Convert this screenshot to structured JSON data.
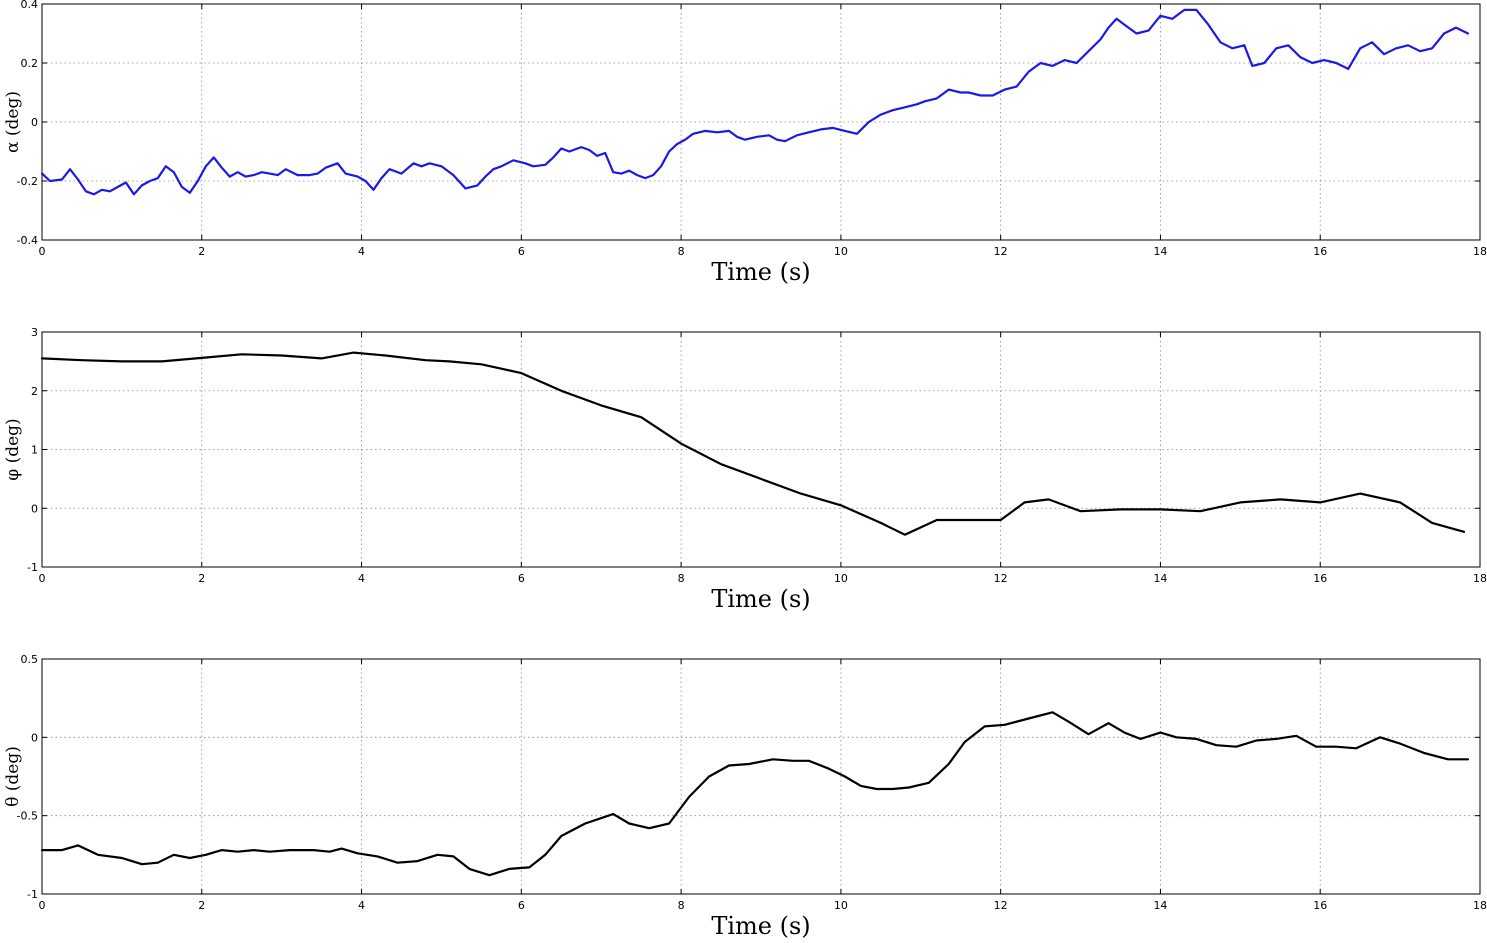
{
  "chart_data": [
    {
      "type": "line",
      "xlabel": "Time (s)",
      "ylabel": "α (deg)",
      "xlim": [
        0,
        18
      ],
      "ylim": [
        -0.4,
        0.4
      ],
      "xticks": [
        "0",
        "2",
        "4",
        "6",
        "8",
        "10",
        "12",
        "14",
        "16",
        "18"
      ],
      "yticks": [
        "-0.4",
        "-0.2",
        "0",
        "0.2",
        "0.4"
      ],
      "grid": true,
      "series": [
        {
          "color": "#1a1ae6",
          "x": [
            0,
            0.1,
            0.25,
            0.35,
            0.45,
            0.55,
            0.65,
            0.75,
            0.85,
            0.95,
            1.05,
            1.15,
            1.25,
            1.35,
            1.45,
            1.55,
            1.65,
            1.75,
            1.85,
            1.95,
            2.05,
            2.15,
            2.25,
            2.35,
            2.45,
            2.55,
            2.65,
            2.75,
            2.85,
            2.95,
            3.05,
            3.2,
            3.35,
            3.45,
            3.55,
            3.7,
            3.8,
            3.95,
            4.05,
            4.15,
            4.25,
            4.35,
            4.5,
            4.65,
            4.75,
            4.85,
            5.0,
            5.15,
            5.3,
            5.45,
            5.55,
            5.65,
            5.75,
            5.9,
            6.05,
            6.15,
            6.3,
            6.4,
            6.5,
            6.6,
            6.75,
            6.85,
            6.95,
            7.05,
            7.15,
            7.25,
            7.35,
            7.45,
            7.55,
            7.65,
            7.75,
            7.85,
            7.95,
            8.05,
            8.15,
            8.3,
            8.45,
            8.6,
            8.7,
            8.8,
            8.95,
            9.1,
            9.2,
            9.3,
            9.45,
            9.6,
            9.75,
            9.9,
            10.05,
            10.2,
            10.35,
            10.5,
            10.65,
            10.8,
            10.95,
            11.05,
            11.2,
            11.35,
            11.5,
            11.6,
            11.75,
            11.9,
            12.05,
            12.2,
            12.35,
            12.5,
            12.65,
            12.8,
            12.95,
            13.1,
            13.25,
            13.35,
            13.45,
            13.55,
            13.7,
            13.85,
            14.0,
            14.15,
            14.3,
            14.45,
            14.6,
            14.75,
            14.9,
            15.05,
            15.15,
            15.3,
            15.45,
            15.6,
            15.75,
            15.9,
            16.05,
            16.2,
            16.35,
            16.5,
            16.65,
            16.8,
            16.95,
            17.1,
            17.25,
            17.4,
            17.55,
            17.7,
            17.85
          ],
          "y": [
            -0.175,
            -0.2,
            -0.195,
            -0.16,
            -0.195,
            -0.235,
            -0.245,
            -0.23,
            -0.235,
            -0.22,
            -0.205,
            -0.245,
            -0.215,
            -0.2,
            -0.19,
            -0.15,
            -0.17,
            -0.22,
            -0.24,
            -0.2,
            -0.15,
            -0.12,
            -0.155,
            -0.185,
            -0.17,
            -0.185,
            -0.18,
            -0.17,
            -0.175,
            -0.18,
            -0.16,
            -0.18,
            -0.18,
            -0.175,
            -0.155,
            -0.14,
            -0.175,
            -0.185,
            -0.2,
            -0.23,
            -0.19,
            -0.16,
            -0.175,
            -0.14,
            -0.15,
            -0.14,
            -0.15,
            -0.18,
            -0.225,
            -0.215,
            -0.185,
            -0.16,
            -0.15,
            -0.13,
            -0.14,
            -0.15,
            -0.145,
            -0.12,
            -0.09,
            -0.1,
            -0.085,
            -0.095,
            -0.115,
            -0.105,
            -0.17,
            -0.175,
            -0.165,
            -0.18,
            -0.19,
            -0.18,
            -0.15,
            -0.1,
            -0.075,
            -0.06,
            -0.04,
            -0.03,
            -0.035,
            -0.03,
            -0.05,
            -0.06,
            -0.05,
            -0.045,
            -0.06,
            -0.065,
            -0.045,
            -0.035,
            -0.025,
            -0.02,
            -0.03,
            -0.04,
            0.0,
            0.025,
            0.04,
            0.05,
            0.06,
            0.07,
            0.08,
            0.11,
            0.1,
            0.1,
            0.09,
            0.09,
            0.11,
            0.12,
            0.17,
            0.2,
            0.19,
            0.21,
            0.2,
            0.24,
            0.28,
            0.32,
            0.35,
            0.33,
            0.3,
            0.31,
            0.36,
            0.35,
            0.38,
            0.38,
            0.33,
            0.27,
            0.25,
            0.26,
            0.19,
            0.2,
            0.25,
            0.26,
            0.22,
            0.2,
            0.21,
            0.2,
            0.18,
            0.25,
            0.27,
            0.23,
            0.25,
            0.26,
            0.24,
            0.25,
            0.3,
            0.32,
            0.3
          ]
        }
      ]
    },
    {
      "type": "line",
      "xlabel": "Time (s)",
      "ylabel": "φ (deg)",
      "xlim": [
        0,
        18
      ],
      "ylim": [
        -1,
        3
      ],
      "xticks": [
        "0",
        "2",
        "4",
        "6",
        "8",
        "10",
        "12",
        "14",
        "16",
        "18"
      ],
      "yticks": [
        "-1",
        "0",
        "1",
        "2",
        "3"
      ],
      "grid": true,
      "series": [
        {
          "color": "#000000",
          "x": [
            0,
            0.5,
            1.0,
            1.5,
            2.0,
            2.5,
            3.0,
            3.5,
            3.9,
            4.3,
            4.8,
            5.1,
            5.5,
            6.0,
            6.5,
            7.0,
            7.5,
            8.0,
            8.5,
            9.0,
            9.5,
            10.0,
            10.5,
            10.8,
            11.2,
            11.6,
            12.0,
            12.3,
            12.6,
            13.0,
            13.5,
            14.0,
            14.5,
            15.0,
            15.5,
            16.0,
            16.5,
            17.0,
            17.4,
            17.8
          ],
          "y": [
            2.55,
            2.52,
            2.5,
            2.5,
            2.56,
            2.62,
            2.6,
            2.55,
            2.65,
            2.6,
            2.52,
            2.5,
            2.45,
            2.3,
            2.0,
            1.75,
            1.55,
            1.1,
            0.75,
            0.5,
            0.25,
            0.05,
            -0.25,
            -0.45,
            -0.2,
            -0.2,
            -0.2,
            0.1,
            0.15,
            -0.05,
            -0.02,
            -0.02,
            -0.05,
            0.1,
            0.15,
            0.1,
            0.25,
            0.1,
            -0.25,
            -0.4
          ]
        }
      ]
    },
    {
      "type": "line",
      "xlabel": "Time (s)",
      "ylabel": "θ (deg)",
      "xlim": [
        0,
        18
      ],
      "ylim": [
        -1,
        0.5
      ],
      "xticks": [
        "0",
        "2",
        "4",
        "6",
        "8",
        "10",
        "12",
        "14",
        "16",
        "18"
      ],
      "yticks": [
        "-1",
        "-0.5",
        "0",
        "0.5"
      ],
      "grid": true,
      "series": [
        {
          "color": "#000000",
          "x": [
            0,
            0.25,
            0.45,
            0.7,
            1.0,
            1.25,
            1.45,
            1.65,
            1.85,
            2.05,
            2.25,
            2.45,
            2.65,
            2.85,
            3.1,
            3.4,
            3.6,
            3.75,
            3.95,
            4.2,
            4.45,
            4.7,
            4.95,
            5.15,
            5.35,
            5.6,
            5.85,
            6.1,
            6.3,
            6.5,
            6.8,
            7.15,
            7.35,
            7.6,
            7.85,
            8.1,
            8.35,
            8.6,
            8.85,
            9.15,
            9.4,
            9.6,
            9.85,
            10.05,
            10.25,
            10.45,
            10.65,
            10.85,
            11.1,
            11.35,
            11.55,
            11.8,
            12.05,
            12.35,
            12.65,
            12.85,
            13.1,
            13.35,
            13.55,
            13.75,
            14.0,
            14.2,
            14.45,
            14.7,
            14.95,
            15.2,
            15.45,
            15.7,
            15.95,
            16.2,
            16.45,
            16.75,
            17.0,
            17.3,
            17.6,
            17.85
          ],
          "y": [
            -0.72,
            -0.72,
            -0.69,
            -0.75,
            -0.77,
            -0.81,
            -0.8,
            -0.75,
            -0.77,
            -0.75,
            -0.72,
            -0.73,
            -0.72,
            -0.73,
            -0.72,
            -0.72,
            -0.73,
            -0.71,
            -0.74,
            -0.76,
            -0.8,
            -0.79,
            -0.75,
            -0.76,
            -0.84,
            -0.88,
            -0.84,
            -0.83,
            -0.75,
            -0.63,
            -0.55,
            -0.49,
            -0.55,
            -0.58,
            -0.55,
            -0.38,
            -0.25,
            -0.18,
            -0.17,
            -0.14,
            -0.15,
            -0.15,
            -0.2,
            -0.25,
            -0.31,
            -0.33,
            -0.33,
            -0.32,
            -0.29,
            -0.17,
            -0.03,
            0.07,
            0.08,
            0.12,
            0.16,
            0.1,
            0.02,
            0.09,
            0.03,
            -0.01,
            0.03,
            0.0,
            -0.01,
            -0.05,
            -0.06,
            -0.02,
            -0.01,
            0.01,
            -0.06,
            -0.06,
            -0.07,
            0.0,
            -0.04,
            -0.1,
            -0.14,
            -0.14
          ]
        }
      ]
    }
  ]
}
